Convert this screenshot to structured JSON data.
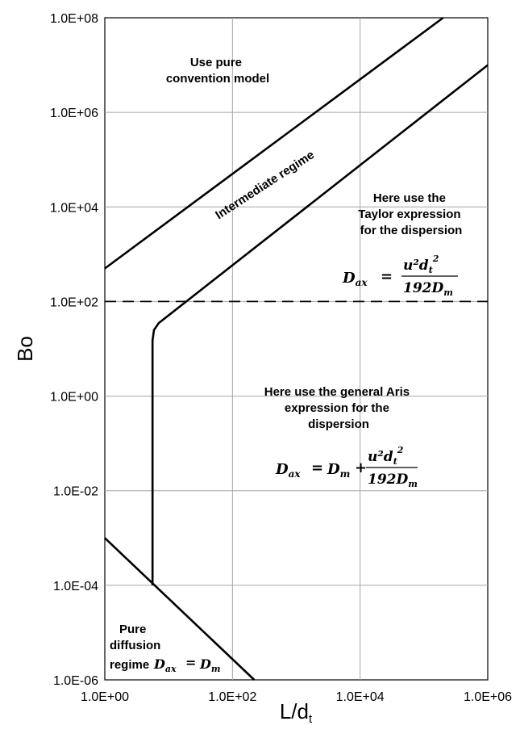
{
  "chart_data": {
    "type": "line",
    "title": "",
    "xlabel": "L/d",
    "xlabel_sub": "t",
    "ylabel": "Bo",
    "xscale": "log",
    "yscale": "log",
    "xlim": [
      1,
      1000000
    ],
    "ylim": [
      1e-06,
      100000000
    ],
    "grid": true,
    "x_ticks": [
      "1.0E+00",
      "1.0E+02",
      "1.0E+04",
      "1.0E+06"
    ],
    "y_ticks": [
      "1.0E-06",
      "1.0E-04",
      "1.0E-02",
      "1.0E+00",
      "1.0E+02",
      "1.0E+04",
      "1.0E+06",
      "1.0E+08"
    ],
    "series": [
      {
        "style": "solid",
        "points": [
          [
            1,
            500
          ],
          [
            200000,
            100000000
          ]
        ]
      },
      {
        "style": "solid",
        "points": [
          [
            5.6,
            0.0001
          ],
          [
            5.6,
            15
          ],
          [
            5.9,
            25
          ],
          [
            7,
            35
          ],
          [
            1000000,
            10000000
          ]
        ]
      },
      {
        "style": "solid",
        "points": [
          [
            1,
            0.001
          ],
          [
            220,
            1e-06
          ]
        ]
      },
      {
        "style": "dashed",
        "points": [
          [
            1,
            100
          ],
          [
            1000000,
            100
          ]
        ]
      }
    ],
    "annotations": [
      {
        "lines": [
          "Use pure",
          "convention model"
        ]
      },
      {
        "lines": [
          "Intermediate  regime"
        ]
      },
      {
        "lines": [
          "Here use the",
          "Taylor expression",
          "for the dispersion"
        ]
      },
      {
        "lines": [
          "Here use the general Aris",
          "expression for the",
          "dispersion"
        ]
      },
      {
        "lines": [
          "Pure",
          "diffusion",
          "regime"
        ]
      }
    ],
    "equations": {
      "taylor_lhs": "D",
      "taylor_lhs_sub": "ax",
      "eq": "=",
      "num": "u²d",
      "num_sub": "t",
      "num_sup": "2",
      "den": "192D",
      "den_sub": "m",
      "aris_dm": "D",
      "aris_dm_sub": "m",
      "plus": "+",
      "diff_lhs": "D",
      "diff_lhs_sub": "ax",
      "diff_rhs": "D",
      "diff_rhs_sub": "m"
    }
  }
}
